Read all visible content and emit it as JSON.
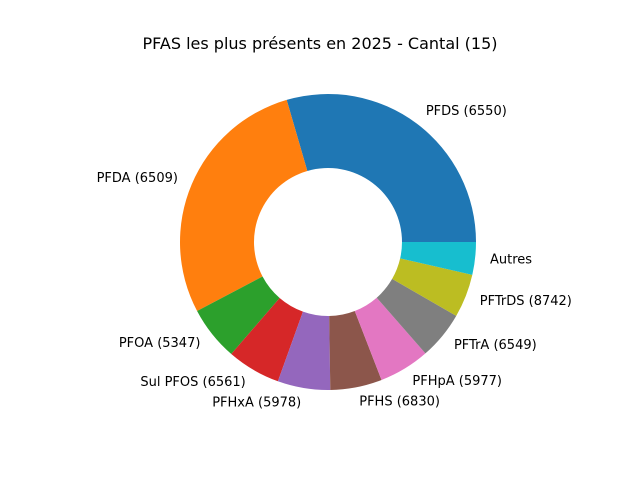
{
  "chart_data": {
    "type": "pie",
    "title": "PFAS les plus présents en 2025 - Cantal (15)",
    "donut": true,
    "start_angle_deg": 0,
    "direction": "counterclockwise",
    "slices": [
      {
        "label": "PFDS (6550)",
        "value": 29.8,
        "color": "#1f77b4"
      },
      {
        "label": "PFDA (6509)",
        "value": 28.5,
        "color": "#ff7f0e"
      },
      {
        "label": "PFOA (5347)",
        "value": 6.0,
        "color": "#2ca02c"
      },
      {
        "label": "Sul PFOS (6561)",
        "value": 5.9,
        "color": "#d62728"
      },
      {
        "label": "PFHxA (5978)",
        "value": 5.8,
        "color": "#9467bd"
      },
      {
        "label": "PFHS (6830)",
        "value": 5.7,
        "color": "#8c564b"
      },
      {
        "label": "PFHpA (5977)",
        "value": 5.6,
        "color": "#e377c2"
      },
      {
        "label": "PFTrA (6549)",
        "value": 5.3,
        "color": "#7f7f7f"
      },
      {
        "label": "PFTrDS (8742)",
        "value": 4.8,
        "color": "#bcbd22"
      },
      {
        "label": "Autres",
        "value": 3.6,
        "color": "#17becf"
      }
    ]
  }
}
